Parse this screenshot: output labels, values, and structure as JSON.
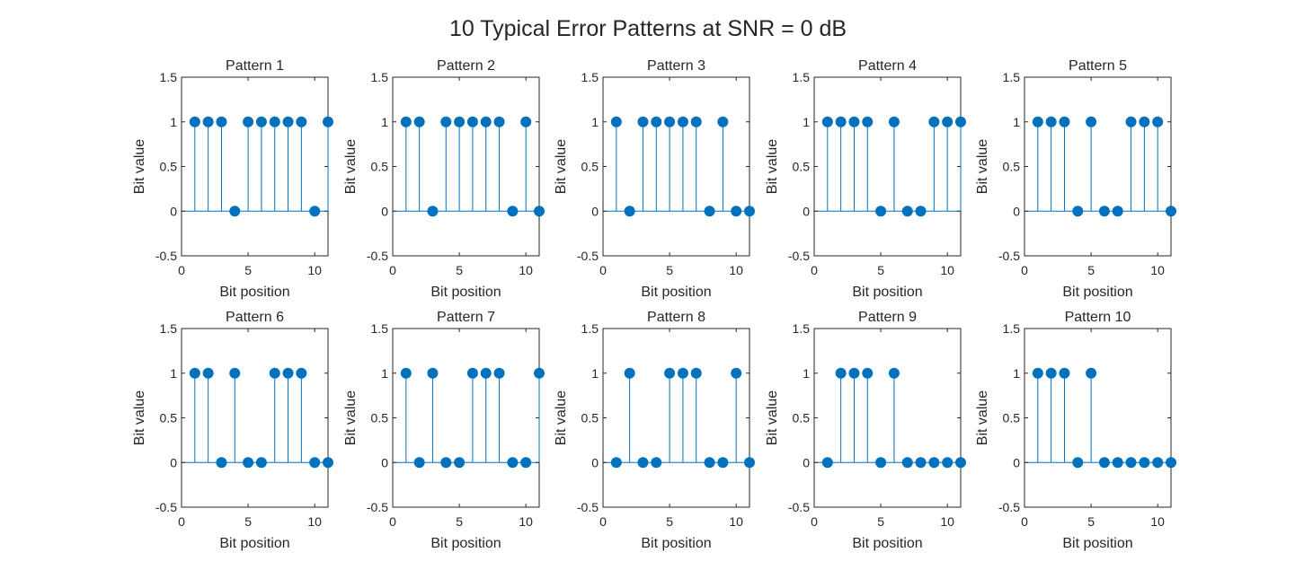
{
  "figure_title": "10 Typical Error Patterns at SNR = 0 dB",
  "colors": {
    "stem": "#0072BD",
    "axes": "#262626",
    "background": "#ffffff"
  },
  "chart_data": [
    {
      "type": "stem",
      "title": "Pattern 1",
      "xlabel": "Bit position",
      "ylabel": "Bit value",
      "xlim": [
        0,
        11
      ],
      "ylim": [
        -0.5,
        1.5
      ],
      "x": [
        1,
        2,
        3,
        4,
        5,
        6,
        7,
        8,
        9,
        10,
        11
      ],
      "values": [
        1,
        1,
        1,
        0,
        1,
        1,
        1,
        1,
        1,
        0,
        1
      ]
    },
    {
      "type": "stem",
      "title": "Pattern 2",
      "xlabel": "Bit position",
      "ylabel": "Bit value",
      "xlim": [
        0,
        11
      ],
      "ylim": [
        -0.5,
        1.5
      ],
      "x": [
        1,
        2,
        3,
        4,
        5,
        6,
        7,
        8,
        9,
        10,
        11
      ],
      "values": [
        1,
        1,
        0,
        1,
        1,
        1,
        1,
        1,
        0,
        1,
        0
      ]
    },
    {
      "type": "stem",
      "title": "Pattern 3",
      "xlabel": "Bit position",
      "ylabel": "Bit value",
      "xlim": [
        0,
        11
      ],
      "ylim": [
        -0.5,
        1.5
      ],
      "x": [
        1,
        2,
        3,
        4,
        5,
        6,
        7,
        8,
        9,
        10,
        11
      ],
      "values": [
        1,
        0,
        1,
        1,
        1,
        1,
        1,
        0,
        1,
        0,
        0
      ]
    },
    {
      "type": "stem",
      "title": "Pattern 4",
      "xlabel": "Bit position",
      "ylabel": "Bit value",
      "xlim": [
        0,
        11
      ],
      "ylim": [
        -0.5,
        1.5
      ],
      "x": [
        1,
        2,
        3,
        4,
        5,
        6,
        7,
        8,
        9,
        10,
        11
      ],
      "values": [
        1,
        1,
        1,
        1,
        0,
        1,
        0,
        0,
        1,
        1,
        1
      ]
    },
    {
      "type": "stem",
      "title": "Pattern 5",
      "xlabel": "Bit position",
      "ylabel": "Bit value",
      "xlim": [
        0,
        11
      ],
      "ylim": [
        -0.5,
        1.5
      ],
      "x": [
        1,
        2,
        3,
        4,
        5,
        6,
        7,
        8,
        9,
        10,
        11
      ],
      "values": [
        1,
        1,
        1,
        0,
        1,
        0,
        0,
        1,
        1,
        1,
        0
      ]
    },
    {
      "type": "stem",
      "title": "Pattern 6",
      "xlabel": "Bit position",
      "ylabel": "Bit value",
      "xlim": [
        0,
        11
      ],
      "ylim": [
        -0.5,
        1.5
      ],
      "x": [
        1,
        2,
        3,
        4,
        5,
        6,
        7,
        8,
        9,
        10,
        11
      ],
      "values": [
        1,
        1,
        0,
        1,
        0,
        0,
        1,
        1,
        1,
        0,
        0
      ]
    },
    {
      "type": "stem",
      "title": "Pattern 7",
      "xlabel": "Bit position",
      "ylabel": "Bit value",
      "xlim": [
        0,
        11
      ],
      "ylim": [
        -0.5,
        1.5
      ],
      "x": [
        1,
        2,
        3,
        4,
        5,
        6,
        7,
        8,
        9,
        10,
        11
      ],
      "values": [
        1,
        0,
        1,
        0,
        0,
        1,
        1,
        1,
        0,
        0,
        1
      ]
    },
    {
      "type": "stem",
      "title": "Pattern 8",
      "xlabel": "Bit position",
      "ylabel": "Bit value",
      "xlim": [
        0,
        11
      ],
      "ylim": [
        -0.5,
        1.5
      ],
      "x": [
        1,
        2,
        3,
        4,
        5,
        6,
        7,
        8,
        9,
        10,
        11
      ],
      "values": [
        0,
        1,
        0,
        0,
        1,
        1,
        1,
        0,
        0,
        1,
        0
      ]
    },
    {
      "type": "stem",
      "title": "Pattern 9",
      "xlabel": "Bit position",
      "ylabel": "Bit value",
      "xlim": [
        0,
        11
      ],
      "ylim": [
        -0.5,
        1.5
      ],
      "x": [
        1,
        2,
        3,
        4,
        5,
        6,
        7,
        8,
        9,
        10,
        11
      ],
      "values": [
        0,
        1,
        1,
        1,
        0,
        1,
        0,
        0,
        0,
        0,
        0
      ]
    },
    {
      "type": "stem",
      "title": "Pattern 10",
      "xlabel": "Bit position",
      "ylabel": "Bit value",
      "xlim": [
        0,
        11
      ],
      "ylim": [
        -0.5,
        1.5
      ],
      "x": [
        1,
        2,
        3,
        4,
        5,
        6,
        7,
        8,
        9,
        10,
        11
      ],
      "values": [
        1,
        1,
        1,
        0,
        1,
        0,
        0,
        0,
        0,
        0,
        0
      ]
    }
  ],
  "x_ticks": [
    0,
    5,
    10
  ],
  "y_ticks": [
    -0.5,
    0,
    0.5,
    1,
    1.5
  ]
}
